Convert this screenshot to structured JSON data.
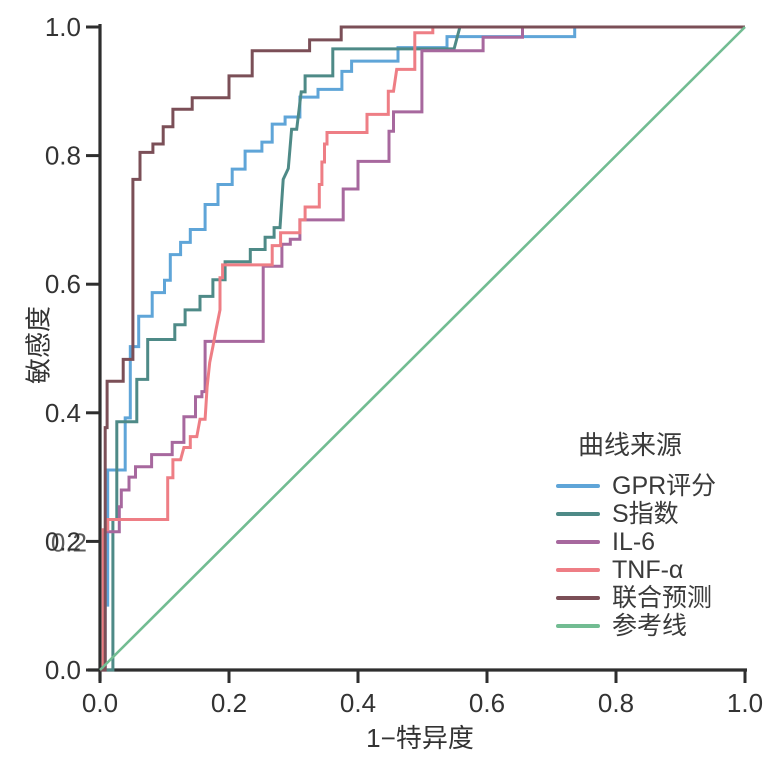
{
  "figure": {
    "kind": "roc-curve-plot",
    "background": "#ffffff",
    "axis_color": "#2e2e2e",
    "text_color": "#333333"
  },
  "chart_data": {
    "type": "line",
    "subtype": "roc",
    "title": "",
    "xlabel": "1−特异度",
    "ylabel": "敏感度",
    "xlim": [
      0,
      1
    ],
    "ylim": [
      0,
      1
    ],
    "x_ticks": [
      "0.0",
      "0.2",
      "0.4",
      "0.6",
      "0.8",
      "1.0"
    ],
    "y_ticks": [
      "0.0",
      "0.2",
      "0.4",
      "0.6",
      "0.8",
      "1.0"
    ],
    "y_tick_ghost": "0.2",
    "grid": false,
    "legend_title": "曲线来源",
    "legend_position": "inside lower right",
    "series": [
      {
        "id": "gpr-score",
        "name": "GPR评分",
        "color": "#5FA5D8",
        "points": [
          [
            0,
            0
          ],
          [
            0.008,
            0
          ],
          [
            0.008,
            0.101
          ],
          [
            0.012,
            0.101
          ],
          [
            0.012,
            0.311
          ],
          [
            0.039,
            0.311
          ],
          [
            0.039,
            0.392
          ],
          [
            0.047,
            0.392
          ],
          [
            0.047,
            0.503
          ],
          [
            0.06,
            0.503
          ],
          [
            0.06,
            0.55
          ],
          [
            0.081,
            0.55
          ],
          [
            0.081,
            0.587
          ],
          [
            0.1,
            0.587
          ],
          [
            0.1,
            0.606
          ],
          [
            0.109,
            0.606
          ],
          [
            0.109,
            0.646
          ],
          [
            0.125,
            0.646
          ],
          [
            0.125,
            0.665
          ],
          [
            0.14,
            0.665
          ],
          [
            0.14,
            0.685
          ],
          [
            0.163,
            0.685
          ],
          [
            0.163,
            0.724
          ],
          [
            0.183,
            0.724
          ],
          [
            0.183,
            0.755
          ],
          [
            0.205,
            0.755
          ],
          [
            0.205,
            0.779
          ],
          [
            0.225,
            0.779
          ],
          [
            0.225,
            0.807
          ],
          [
            0.251,
            0.807
          ],
          [
            0.251,
            0.821
          ],
          [
            0.267,
            0.821
          ],
          [
            0.267,
            0.849
          ],
          [
            0.287,
            0.849
          ],
          [
            0.287,
            0.86
          ],
          [
            0.31,
            0.86
          ],
          [
            0.31,
            0.891
          ],
          [
            0.338,
            0.891
          ],
          [
            0.338,
            0.903
          ],
          [
            0.375,
            0.903
          ],
          [
            0.375,
            0.931
          ],
          [
            0.39,
            0.931
          ],
          [
            0.39,
            0.947
          ],
          [
            0.462,
            0.947
          ],
          [
            0.462,
            0.968
          ],
          [
            0.538,
            0.968
          ],
          [
            0.538,
            0.985
          ],
          [
            0.736,
            0.985
          ],
          [
            0.736,
            1
          ],
          [
            1,
            1
          ]
        ]
      },
      {
        "id": "s-index",
        "name": "S指数",
        "color": "#4E8A87",
        "points": [
          [
            0,
            0
          ],
          [
            0.02,
            0
          ],
          [
            0.02,
            0.234
          ],
          [
            0.026,
            0.234
          ],
          [
            0.026,
            0.386
          ],
          [
            0.057,
            0.386
          ],
          [
            0.057,
            0.452
          ],
          [
            0.074,
            0.452
          ],
          [
            0.074,
            0.514
          ],
          [
            0.116,
            0.514
          ],
          [
            0.116,
            0.537
          ],
          [
            0.132,
            0.537
          ],
          [
            0.132,
            0.56
          ],
          [
            0.155,
            0.56
          ],
          [
            0.155,
            0.581
          ],
          [
            0.175,
            0.581
          ],
          [
            0.175,
            0.607
          ],
          [
            0.194,
            0.607
          ],
          [
            0.194,
            0.635
          ],
          [
            0.233,
            0.635
          ],
          [
            0.233,
            0.654
          ],
          [
            0.256,
            0.654
          ],
          [
            0.256,
            0.673
          ],
          [
            0.27,
            0.673
          ],
          [
            0.27,
            0.688
          ],
          [
            0.279,
            0.688
          ],
          [
            0.284,
            0.763
          ],
          [
            0.292,
            0.78
          ],
          [
            0.297,
            0.841
          ],
          [
            0.305,
            0.841
          ],
          [
            0.312,
            0.899
          ],
          [
            0.318,
            0.899
          ],
          [
            0.318,
            0.924
          ],
          [
            0.361,
            0.924
          ],
          [
            0.361,
            0.966
          ],
          [
            0.549,
            0.966
          ],
          [
            0.558,
            1
          ],
          [
            1,
            1
          ]
        ]
      },
      {
        "id": "il-6",
        "name": "IL-6",
        "color": "#A7689E",
        "points": [
          [
            0,
            0
          ],
          [
            0.006,
            0
          ],
          [
            0.006,
            0.215
          ],
          [
            0.03,
            0.215
          ],
          [
            0.03,
            0.254
          ],
          [
            0.033,
            0.254
          ],
          [
            0.033,
            0.28
          ],
          [
            0.045,
            0.28
          ],
          [
            0.045,
            0.3
          ],
          [
            0.055,
            0.3
          ],
          [
            0.055,
            0.316
          ],
          [
            0.08,
            0.316
          ],
          [
            0.08,
            0.335
          ],
          [
            0.112,
            0.335
          ],
          [
            0.112,
            0.354
          ],
          [
            0.13,
            0.354
          ],
          [
            0.13,
            0.394
          ],
          [
            0.148,
            0.394
          ],
          [
            0.148,
            0.425
          ],
          [
            0.158,
            0.425
          ],
          [
            0.158,
            0.433
          ],
          [
            0.163,
            0.433
          ],
          [
            0.163,
            0.511
          ],
          [
            0.253,
            0.511
          ],
          [
            0.253,
            0.628
          ],
          [
            0.282,
            0.628
          ],
          [
            0.282,
            0.662
          ],
          [
            0.295,
            0.662
          ],
          [
            0.295,
            0.67
          ],
          [
            0.31,
            0.67
          ],
          [
            0.31,
            0.7
          ],
          [
            0.377,
            0.7
          ],
          [
            0.377,
            0.748
          ],
          [
            0.4,
            0.748
          ],
          [
            0.4,
            0.791
          ],
          [
            0.448,
            0.791
          ],
          [
            0.448,
            0.838
          ],
          [
            0.455,
            0.838
          ],
          [
            0.455,
            0.868
          ],
          [
            0.499,
            0.868
          ],
          [
            0.499,
            0.963
          ],
          [
            0.594,
            0.963
          ],
          [
            0.594,
            0.984
          ],
          [
            0.655,
            0.984
          ],
          [
            0.655,
            1
          ],
          [
            1,
            1
          ]
        ]
      },
      {
        "id": "tnf-alpha",
        "name": "TNF-α",
        "color": "#EE7E85",
        "points": [
          [
            0,
            0
          ],
          [
            0.005,
            0
          ],
          [
            0.005,
            0.218
          ],
          [
            0.012,
            0.218
          ],
          [
            0.012,
            0.234
          ],
          [
            0.105,
            0.234
          ],
          [
            0.105,
            0.299
          ],
          [
            0.113,
            0.299
          ],
          [
            0.113,
            0.327
          ],
          [
            0.125,
            0.327
          ],
          [
            0.13,
            0.346
          ],
          [
            0.14,
            0.346
          ],
          [
            0.14,
            0.363
          ],
          [
            0.15,
            0.363
          ],
          [
            0.155,
            0.39
          ],
          [
            0.163,
            0.39
          ],
          [
            0.166,
            0.44
          ],
          [
            0.17,
            0.478
          ],
          [
            0.175,
            0.503
          ],
          [
            0.18,
            0.53
          ],
          [
            0.186,
            0.56
          ],
          [
            0.186,
            0.61
          ],
          [
            0.19,
            0.61
          ],
          [
            0.19,
            0.63
          ],
          [
            0.267,
            0.63
          ],
          [
            0.267,
            0.66
          ],
          [
            0.28,
            0.66
          ],
          [
            0.28,
            0.68
          ],
          [
            0.31,
            0.68
          ],
          [
            0.31,
            0.7
          ],
          [
            0.318,
            0.7
          ],
          [
            0.318,
            0.72
          ],
          [
            0.34,
            0.72
          ],
          [
            0.34,
            0.755
          ],
          [
            0.344,
            0.755
          ],
          [
            0.344,
            0.79
          ],
          [
            0.348,
            0.79
          ],
          [
            0.348,
            0.818
          ],
          [
            0.352,
            0.818
          ],
          [
            0.352,
            0.836
          ],
          [
            0.414,
            0.836
          ],
          [
            0.414,
            0.864
          ],
          [
            0.447,
            0.864
          ],
          [
            0.447,
            0.9
          ],
          [
            0.455,
            0.9
          ],
          [
            0.46,
            0.934
          ],
          [
            0.488,
            0.934
          ],
          [
            0.488,
            0.991
          ],
          [
            0.516,
            0.991
          ],
          [
            0.516,
            1
          ],
          [
            1,
            1
          ]
        ]
      },
      {
        "id": "combined-prediction",
        "name": "联合预测",
        "color": "#7B4F57",
        "points": [
          [
            0,
            0
          ],
          [
            0.008,
            0
          ],
          [
            0.008,
            0.377
          ],
          [
            0.011,
            0.377
          ],
          [
            0.011,
            0.449
          ],
          [
            0.036,
            0.449
          ],
          [
            0.036,
            0.483
          ],
          [
            0.051,
            0.483
          ],
          [
            0.051,
            0.763
          ],
          [
            0.062,
            0.763
          ],
          [
            0.062,
            0.805
          ],
          [
            0.082,
            0.805
          ],
          [
            0.082,
            0.818
          ],
          [
            0.098,
            0.818
          ],
          [
            0.098,
            0.845
          ],
          [
            0.113,
            0.845
          ],
          [
            0.113,
            0.872
          ],
          [
            0.143,
            0.872
          ],
          [
            0.143,
            0.89
          ],
          [
            0.2,
            0.89
          ],
          [
            0.2,
            0.924
          ],
          [
            0.236,
            0.924
          ],
          [
            0.236,
            0.963
          ],
          [
            0.325,
            0.963
          ],
          [
            0.325,
            0.98
          ],
          [
            0.374,
            0.98
          ],
          [
            0.374,
            1
          ],
          [
            1,
            1
          ]
        ]
      },
      {
        "id": "reference-line",
        "name": "参考线",
        "color": "#72BC92",
        "points": [
          [
            0,
            0
          ],
          [
            1,
            1
          ]
        ]
      }
    ]
  }
}
